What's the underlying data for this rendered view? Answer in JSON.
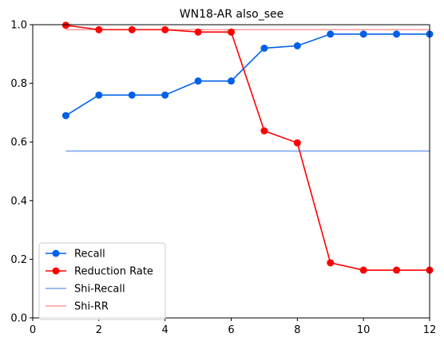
{
  "chart_data": {
    "type": "line",
    "title": "WN18-AR also_see",
    "xlabel": "",
    "ylabel": "",
    "xlim": [
      0,
      12
    ],
    "ylim": [
      0,
      1.0
    ],
    "xticks": [
      0,
      2,
      4,
      6,
      8,
      10,
      12
    ],
    "yticks": [
      0.0,
      0.2,
      0.4,
      0.6,
      0.8,
      1.0
    ],
    "xtick_labels": [
      "0",
      "2",
      "4",
      "6",
      "8",
      "10",
      "12"
    ],
    "ytick_labels": [
      "0.0",
      "0.2",
      "0.4",
      "0.6",
      "0.8",
      "1.0"
    ],
    "grid": false,
    "legend_position": "lower-left",
    "x": [
      1,
      2,
      3,
      4,
      5,
      6,
      7,
      8,
      9,
      10,
      11,
      12
    ],
    "series": [
      {
        "name": "Recall",
        "color": "#0060e6",
        "marker": "circle",
        "values": [
          0.69,
          0.76,
          0.76,
          0.76,
          0.808,
          0.808,
          0.92,
          0.928,
          0.968,
          0.968,
          0.968,
          0.968
        ]
      },
      {
        "name": "Reduction Rate",
        "color": "#ff0000",
        "marker": "circle",
        "values": [
          0.998,
          0.983,
          0.983,
          0.983,
          0.975,
          0.975,
          0.638,
          0.597,
          0.188,
          0.163,
          0.163,
          0.163
        ]
      }
    ],
    "reference_lines": [
      {
        "name": "Shi-Recall",
        "color": "#7aa6f0",
        "x_range": [
          1,
          12
        ],
        "value": 0.569
      },
      {
        "name": "Shi-RR",
        "color": "#ff9a9a",
        "x_range": [
          1,
          12
        ],
        "value": 0.983
      }
    ]
  }
}
